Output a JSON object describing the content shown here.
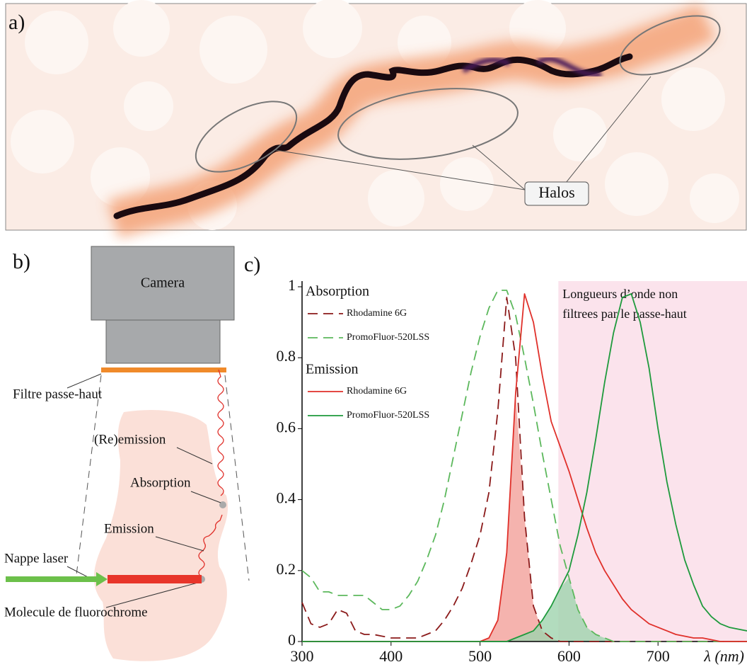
{
  "panel_a": {
    "label": "a)",
    "annotation": "Halos"
  },
  "panel_b": {
    "label": "b)",
    "camera": "Camera",
    "filter": "Filtre passe-haut",
    "reemission": "(Re)emission",
    "absorption": "Absorption",
    "emission": "Emission",
    "laser": "Nappe laser",
    "molecule": "Molecule de fluorochrome"
  },
  "panel_c": {
    "label": "c)"
  },
  "chart_data": {
    "type": "line",
    "x_label": "λ (nm)",
    "xlim": [
      300,
      800
    ],
    "xticks": [
      300,
      400,
      500,
      600,
      700
    ],
    "ylim": [
      0,
      1
    ],
    "yticks": [
      0,
      0.2,
      0.4,
      0.6,
      0.8,
      1
    ],
    "highlight": {
      "range": [
        588,
        800
      ],
      "color": "#fbe3ec",
      "text": [
        "Longueurs d’onde non",
        "filtrees par le passe-haut"
      ]
    },
    "x": [
      300,
      310,
      320,
      330,
      340,
      350,
      360,
      370,
      380,
      390,
      400,
      410,
      420,
      430,
      440,
      450,
      460,
      470,
      480,
      490,
      500,
      510,
      520,
      530,
      540,
      550,
      560,
      570,
      580,
      590,
      600,
      610,
      620,
      630,
      640,
      650,
      660,
      670,
      680,
      690,
      700,
      710,
      720,
      730,
      740,
      750,
      760,
      770,
      780,
      790,
      800
    ],
    "series": [
      {
        "name": "Rhodamine 6G",
        "group": "Absorption",
        "color": "#8b1a1a",
        "style": "dashed",
        "values": [
          0.11,
          0.05,
          0.04,
          0.05,
          0.09,
          0.08,
          0.03,
          0.02,
          0.02,
          0.015,
          0.01,
          0.01,
          0.01,
          0.01,
          0.02,
          0.03,
          0.06,
          0.1,
          0.15,
          0.22,
          0.3,
          0.42,
          0.65,
          0.97,
          0.8,
          0.35,
          0.1,
          0.03,
          0.01,
          0,
          0,
          0,
          0,
          0,
          0,
          0,
          0,
          0,
          0,
          0,
          0,
          0,
          0,
          0,
          0,
          0,
          0,
          0,
          0,
          0,
          0
        ]
      },
      {
        "name": "PromoFluor-520LSS",
        "group": "Absorption",
        "color": "#5cb85c",
        "style": "dashed",
        "values": [
          0.2,
          0.18,
          0.14,
          0.14,
          0.13,
          0.13,
          0.13,
          0.13,
          0.11,
          0.09,
          0.09,
          0.1,
          0.13,
          0.17,
          0.23,
          0.3,
          0.4,
          0.52,
          0.64,
          0.76,
          0.86,
          0.94,
          0.99,
          0.99,
          0.92,
          0.8,
          0.67,
          0.53,
          0.4,
          0.27,
          0.18,
          0.09,
          0.04,
          0.02,
          0.01,
          0,
          0,
          0,
          0,
          0,
          0,
          0,
          0,
          0,
          0,
          0,
          0,
          0,
          0,
          0,
          0
        ]
      },
      {
        "name": "Rhodamine 6G",
        "group": "Emission",
        "color": "#e0302a",
        "style": "solid",
        "fill": "#f2a09a",
        "values": [
          0,
          0,
          0,
          0,
          0,
          0,
          0,
          0,
          0,
          0,
          0,
          0,
          0,
          0,
          0,
          0,
          0,
          0,
          0,
          0,
          0,
          0.01,
          0.06,
          0.25,
          0.7,
          0.98,
          0.9,
          0.75,
          0.62,
          0.55,
          0.48,
          0.4,
          0.32,
          0.25,
          0.2,
          0.16,
          0.12,
          0.09,
          0.07,
          0.05,
          0.04,
          0.03,
          0.02,
          0.015,
          0.01,
          0.01,
          0.005,
          0,
          0,
          0,
          0
        ]
      },
      {
        "name": "PromoFluor-520LSS",
        "group": "Emission",
        "color": "#1e9a3c",
        "style": "solid",
        "fill": "#9fd3ae",
        "values": [
          0,
          0,
          0,
          0,
          0,
          0,
          0,
          0,
          0,
          0,
          0,
          0,
          0,
          0,
          0,
          0,
          0,
          0,
          0,
          0,
          0,
          0,
          0,
          0,
          0.01,
          0.02,
          0.03,
          0.06,
          0.1,
          0.15,
          0.2,
          0.3,
          0.42,
          0.57,
          0.73,
          0.87,
          0.97,
          0.98,
          0.9,
          0.77,
          0.6,
          0.45,
          0.33,
          0.23,
          0.16,
          0.1,
          0.07,
          0.05,
          0.04,
          0.035,
          0.03
        ]
      }
    ]
  }
}
